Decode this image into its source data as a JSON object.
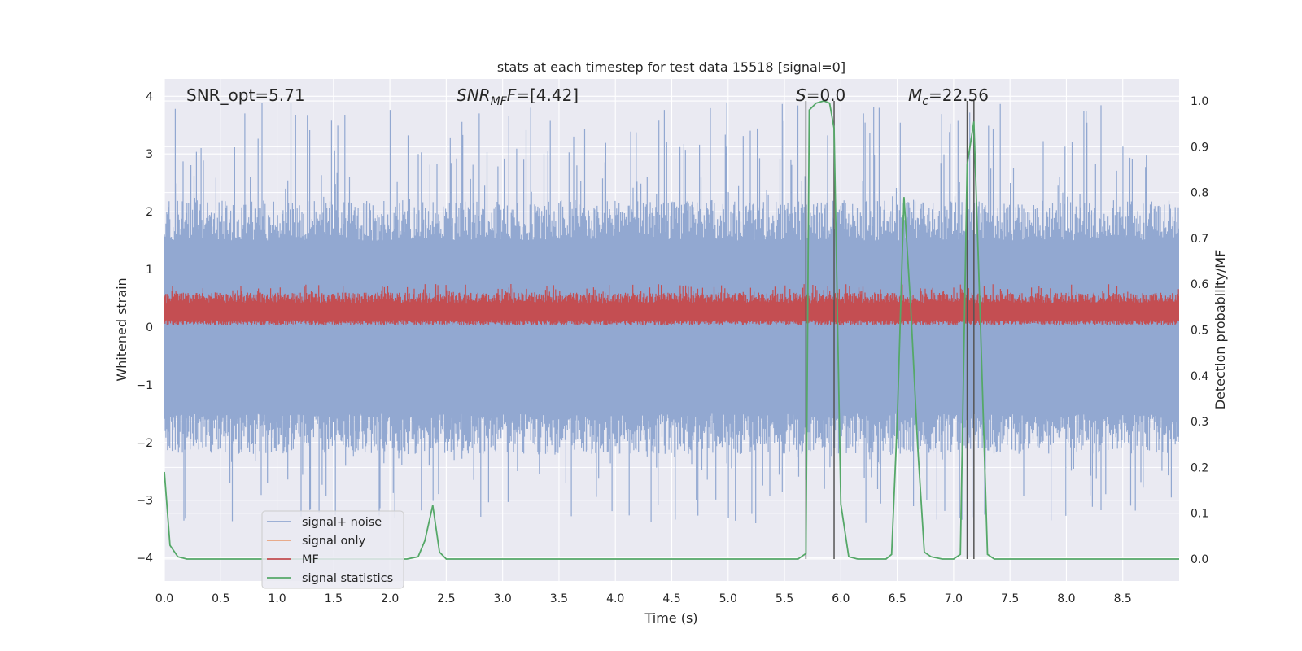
{
  "chart_data": {
    "type": "line",
    "title": "stats at each timestep for test data 15518 [signal=0]",
    "xlabel": "Time (s)",
    "ylabel": "Whitened strain",
    "ylabel_right": "Detection probability/MF",
    "xlim": [
      0,
      9.0
    ],
    "ylim": [
      -4.4,
      4.3
    ],
    "ylim_right": [
      -0.048,
      1.048
    ],
    "x_ticks": [
      "0.0",
      "0.5",
      "1.0",
      "1.5",
      "2.0",
      "2.5",
      "3.0",
      "3.5",
      "4.0",
      "4.5",
      "5.0",
      "5.5",
      "6.0",
      "6.5",
      "7.0",
      "7.5",
      "8.0",
      "8.5"
    ],
    "x_tick_values": [
      0,
      0.5,
      1,
      1.5,
      2,
      2.5,
      3,
      3.5,
      4,
      4.5,
      5,
      5.5,
      6,
      6.5,
      7,
      7.5,
      8,
      8.5
    ],
    "y_ticks": [
      "4",
      "3",
      "2",
      "1",
      "0",
      "−1",
      "−2",
      "−3",
      "−4"
    ],
    "y_tick_values": [
      4,
      3,
      2,
      1,
      0,
      -1,
      -2,
      -3,
      -4
    ],
    "y_right_ticks": [
      "1.0",
      "0.9",
      "0.8",
      "0.7",
      "0.6",
      "0.5",
      "0.4",
      "0.3",
      "0.2",
      "0.1",
      "0.0"
    ],
    "y_right_tick_values": [
      1.0,
      0.9,
      0.8,
      0.7,
      0.6,
      0.5,
      0.4,
      0.3,
      0.2,
      0.1,
      0.0
    ],
    "grid": true,
    "legend_position": "lower-left",
    "annotations": {
      "snr_opt": "SNR_opt=5.71",
      "snr_mf_main": "SNR",
      "snr_mf_sub": "MF",
      "snr_mf_rest": "=[4.42]",
      "s_main": "S",
      "s_rest": "=0.0",
      "mc_main": "M",
      "mc_sub": "c",
      "mc_rest": "=22.56"
    },
    "noise_band": {
      "core_min": -1.5,
      "core_max": 1.5,
      "spike_max": 3.9,
      "spike_min": -3.4
    },
    "mf_band": {
      "min": 0.03,
      "max": 0.75
    },
    "vertical_lines_x": [
      5.69,
      5.94,
      7.12,
      7.18
    ],
    "series": [
      {
        "name": "signal+ noise",
        "color": "#92a8d1"
      },
      {
        "name": "signal only",
        "color": "#e8a27c"
      },
      {
        "name": "MF",
        "color": "#c44e52"
      },
      {
        "name": "signal statistics",
        "color": "#55a868",
        "x": [
          0.0,
          0.05,
          0.12,
          0.2,
          0.3,
          0.5,
          0.8,
          1.0,
          1.5,
          2.0,
          2.15,
          2.25,
          2.31,
          2.38,
          2.44,
          2.5,
          2.6,
          2.8,
          3.0,
          3.5,
          4.0,
          4.5,
          5.0,
          5.5,
          5.62,
          5.69,
          5.72,
          5.78,
          5.85,
          5.9,
          5.94,
          6.0,
          6.07,
          6.15,
          6.3,
          6.4,
          6.45,
          6.5,
          6.56,
          6.62,
          6.68,
          6.74,
          6.8,
          6.9,
          7.0,
          7.06,
          7.12,
          7.18,
          7.24,
          7.3,
          7.36,
          7.45,
          7.6,
          8.0,
          8.5,
          9.0
        ],
        "y": [
          0.19,
          0.03,
          0.005,
          0.0,
          0.0,
          0.0,
          0.0,
          0.0,
          0.0,
          0.0,
          0.0,
          0.005,
          0.04,
          0.117,
          0.015,
          0.0,
          0.0,
          0.0,
          0.0,
          0.0,
          0.0,
          0.0,
          0.0,
          0.0,
          0.0,
          0.012,
          0.98,
          0.995,
          1.0,
          0.995,
          0.94,
          0.12,
          0.005,
          0.0,
          0.0,
          0.0,
          0.01,
          0.3,
          0.79,
          0.55,
          0.25,
          0.015,
          0.005,
          0.0,
          0.0,
          0.01,
          0.86,
          0.955,
          0.5,
          0.01,
          0.0,
          0.0,
          0.0,
          0.0,
          0.0,
          0.0
        ]
      }
    ]
  }
}
